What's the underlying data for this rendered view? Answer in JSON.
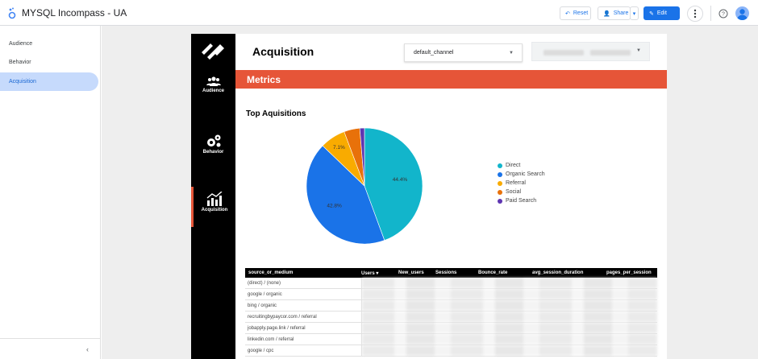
{
  "app": {
    "title": "MYSQL Incompass - UA"
  },
  "toolbar": {
    "reset_label": "Reset",
    "share_label": "Share",
    "edit_label": "Edit"
  },
  "sidebar": {
    "items": [
      {
        "label": "Audience"
      },
      {
        "label": "Behavior"
      },
      {
        "label": "Acquisition",
        "active": true
      }
    ]
  },
  "report": {
    "nav": [
      {
        "label": "Audience",
        "icon": "people-icon"
      },
      {
        "label": "Behavior",
        "icon": "gears-icon"
      },
      {
        "label": "Acquisition",
        "icon": "bar-trend-icon"
      }
    ],
    "title": "Acquisition",
    "channel_dropdown": {
      "value": "default_channel"
    },
    "metrics_banner": "Metrics",
    "chart_title": "Top Aquisitions",
    "table": {
      "headers": [
        "source_or_medium",
        "Users ▾",
        "New_users",
        "Sessions",
        "Bounce_rate",
        "avg_session_duration",
        "pages_per_session"
      ],
      "rows": [
        "(direct) / (none)",
        "google / organic",
        "bing / organic",
        "recruitingbypaycor.com / referral",
        "jobapply.page.link / referral",
        "linkedin.com / referral",
        "google / cpc"
      ]
    }
  },
  "chart_data": {
    "type": "pie",
    "title": "Top Aquisitions",
    "categories": [
      "Direct",
      "Organic Search",
      "Referral",
      "Social",
      "Paid Search"
    ],
    "values": [
      44.4,
      42.8,
      7.1,
      4.4,
      1.3
    ],
    "slice_labels": [
      "44.4%",
      "42.8%",
      "7.1%",
      "",
      ""
    ],
    "colors": [
      "#12b5cb",
      "#1a73e8",
      "#f9ab00",
      "#e8710a",
      "#5e35b1"
    ],
    "legend_position": "right"
  },
  "colors": {
    "accent": "#e65538",
    "brand_blue": "#1a73e8"
  }
}
